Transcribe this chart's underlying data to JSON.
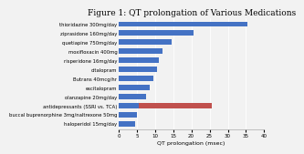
{
  "title": "Figure 1: QT prolongation of Various Medications",
  "xlabel": "QT prolongation (msec)",
  "categories": [
    "thioridazine 300mg/day",
    "ziprasidone 160mg/day",
    "quetiapine 750mg/day",
    "moxifloxacin 400mg",
    "risperidone 16mg/day",
    "citalopram",
    "Butrans 40mcg/hr",
    "escitalopram",
    "olanzapine 20mg/day",
    "antidepressants (SSRI vs. TCA)",
    "buccal buprenorphine 3mg/naltrexone 50mg",
    "haloperidol 15mg/day"
  ],
  "values": [
    35.5,
    20.5,
    14.5,
    12.0,
    11.0,
    10.5,
    9.5,
    8.5,
    7.5,
    20.0,
    5.0,
    4.5
  ],
  "bar_colors": [
    "#4472c4",
    "#4472c4",
    "#4472c4",
    "#4472c4",
    "#4472c4",
    "#4472c4",
    "#4472c4",
    "#4472c4",
    "#4472c4",
    "#c0504d",
    "#4472c4",
    "#4472c4"
  ],
  "blue_base": [
    0,
    0,
    0,
    0,
    0,
    0,
    0,
    0,
    0,
    5.5,
    0,
    0
  ],
  "xlim": [
    0,
    40
  ],
  "xticks": [
    0,
    5,
    10,
    15,
    20,
    25,
    30,
    35,
    40
  ],
  "background_color": "#f2f2f2",
  "plot_bg_color": "#f2f2f2",
  "title_fontsize": 6.5,
  "label_fontsize": 3.8,
  "tick_fontsize": 4.0,
  "xlabel_fontsize": 4.5,
  "bar_height": 0.55
}
